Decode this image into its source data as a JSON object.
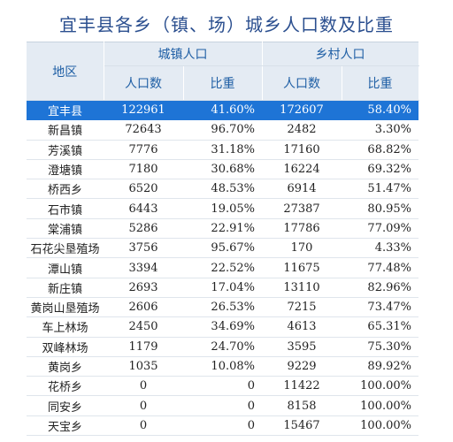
{
  "title": "宜丰县各乡（镇、场）城乡人口数及比重",
  "header": {
    "region": "地区",
    "urban": "城镇人口",
    "rural": "乡村人口",
    "urban_pop": "人口数",
    "urban_ratio": "比重",
    "rural_pop": "人口数",
    "rural_ratio": "比重"
  },
  "colors": {
    "title": "#2b4f8f",
    "header_text": "#1f5fa5",
    "header_bg": "#e4ebf3",
    "selected_row_bg": "#1e74d6"
  },
  "rows": [
    {
      "name": "宜丰县",
      "urban_pop": "122961",
      "urban_ratio": "41.60%",
      "rural_pop": "172607",
      "rural_ratio": "58.40%",
      "selected": true
    },
    {
      "name": "新昌镇",
      "urban_pop": "72643",
      "urban_ratio": "96.70%",
      "rural_pop": "2482",
      "rural_ratio": "3.30%"
    },
    {
      "name": "芳溪镇",
      "urban_pop": "7776",
      "urban_ratio": "31.18%",
      "rural_pop": "17160",
      "rural_ratio": "68.82%"
    },
    {
      "name": "澄塘镇",
      "urban_pop": "7180",
      "urban_ratio": "30.68%",
      "rural_pop": "16224",
      "rural_ratio": "69.32%"
    },
    {
      "name": "桥西乡",
      "urban_pop": "6520",
      "urban_ratio": "48.53%",
      "rural_pop": "6914",
      "rural_ratio": "51.47%"
    },
    {
      "name": "石市镇",
      "urban_pop": "6443",
      "urban_ratio": "19.05%",
      "rural_pop": "27387",
      "rural_ratio": "80.95%"
    },
    {
      "name": "棠浦镇",
      "urban_pop": "5286",
      "urban_ratio": "22.91%",
      "rural_pop": "17786",
      "rural_ratio": "77.09%"
    },
    {
      "name": "石花尖垦殖场",
      "urban_pop": "3756",
      "urban_ratio": "95.67%",
      "rural_pop": "170",
      "rural_ratio": "4.33%"
    },
    {
      "name": "潭山镇",
      "urban_pop": "3394",
      "urban_ratio": "22.52%",
      "rural_pop": "11675",
      "rural_ratio": "77.48%"
    },
    {
      "name": "新庄镇",
      "urban_pop": "2693",
      "urban_ratio": "17.04%",
      "rural_pop": "13110",
      "rural_ratio": "82.96%"
    },
    {
      "name": "黄岗山垦殖场",
      "urban_pop": "2606",
      "urban_ratio": "26.53%",
      "rural_pop": "7215",
      "rural_ratio": "73.47%"
    },
    {
      "name": "车上林场",
      "urban_pop": "2450",
      "urban_ratio": "34.69%",
      "rural_pop": "4613",
      "rural_ratio": "65.31%"
    },
    {
      "name": "双峰林场",
      "urban_pop": "1179",
      "urban_ratio": "24.70%",
      "rural_pop": "3595",
      "rural_ratio": "75.30%"
    },
    {
      "name": "黄岗乡",
      "urban_pop": "1035",
      "urban_ratio": "10.08%",
      "rural_pop": "9229",
      "rural_ratio": "89.92%"
    },
    {
      "name": "花桥乡",
      "urban_pop": "0",
      "urban_ratio": "0",
      "rural_pop": "11422",
      "rural_ratio": "100.00%"
    },
    {
      "name": "同安乡",
      "urban_pop": "0",
      "urban_ratio": "0",
      "rural_pop": "8158",
      "rural_ratio": "100.00%"
    },
    {
      "name": "天宝乡",
      "urban_pop": "0",
      "urban_ratio": "0",
      "rural_pop": "15467",
      "rural_ratio": "100.00%"
    }
  ]
}
